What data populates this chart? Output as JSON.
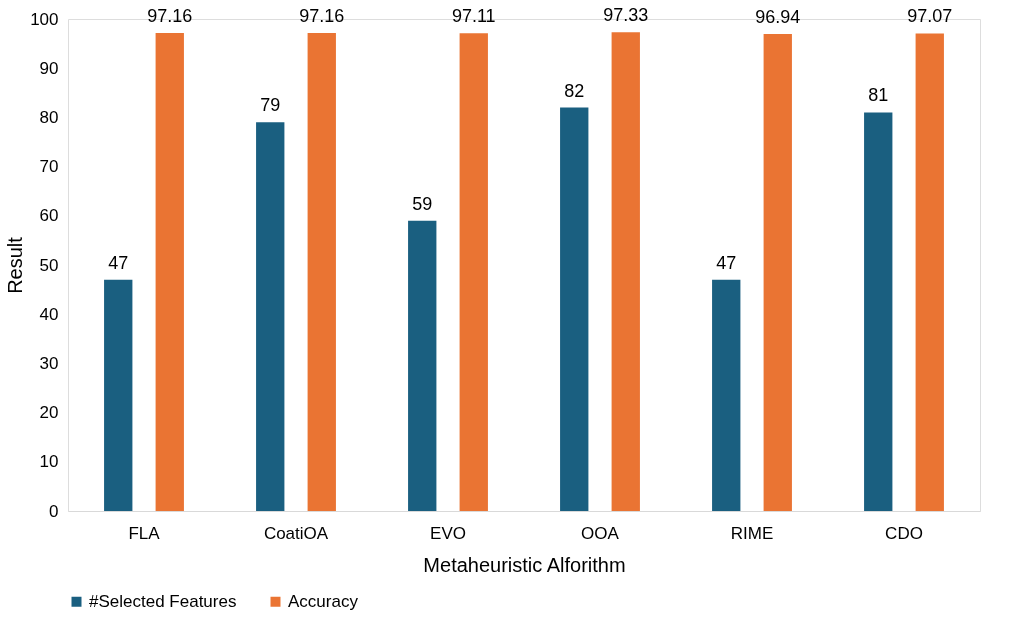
{
  "chart_data": {
    "type": "bar",
    "categories": [
      "FLA",
      "CoatiOA",
      "EVO",
      "OOA",
      "RIME",
      "CDO"
    ],
    "series": [
      {
        "name": "#Selected Features",
        "color": "#1a5f80",
        "values": [
          47,
          79,
          59,
          82,
          47,
          81
        ]
      },
      {
        "name": "Accuracy",
        "color": "#ea7433",
        "values": [
          97.16,
          97.16,
          97.11,
          97.33,
          96.94,
          97.07
        ]
      }
    ],
    "xlabel": "Metaheuristic Alforithm",
    "ylabel": "Result",
    "ylim": [
      0,
      100
    ],
    "yticks": [
      0,
      10,
      20,
      30,
      40,
      50,
      60,
      70,
      80,
      90,
      100
    ],
    "grid": false,
    "legend": "bottom",
    "data_labels": true
  }
}
